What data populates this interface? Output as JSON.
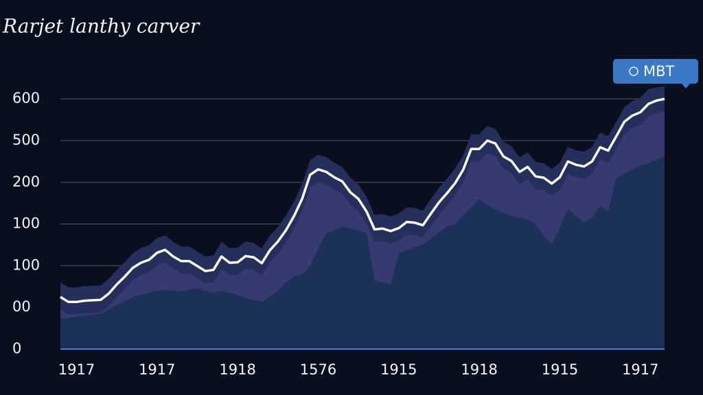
{
  "chart_data": {
    "type": "area",
    "title": "Rarjet lanthy carver",
    "categories": [
      null,
      null,
      "1917",
      null,
      null,
      null,
      null,
      null,
      null,
      null,
      null,
      null,
      "1917",
      null,
      null,
      null,
      null,
      null,
      null,
      null,
      null,
      null,
      "1918",
      null,
      null,
      null,
      null,
      null,
      null,
      null,
      null,
      null,
      "1576",
      null,
      null,
      null,
      null,
      null,
      null,
      null,
      null,
      null,
      "1915",
      null,
      null,
      null,
      null,
      null,
      null,
      null,
      null,
      null,
      "1918",
      null,
      null,
      null,
      null,
      null,
      null,
      null,
      null,
      null,
      "1915",
      null,
      null,
      null,
      null,
      null,
      null,
      null,
      null,
      null,
      "1917",
      null,
      null,
      null
    ],
    "ylim": [
      0,
      630
    ],
    "yticks": [
      0,
      {
        "value": 100,
        "label": "00"
      },
      {
        "value": 200,
        "label": "100"
      },
      {
        "value": 300,
        "label": "100"
      },
      {
        "value": 400,
        "label": "200"
      },
      {
        "value": 500,
        "label": "500"
      },
      600
    ],
    "grid": true,
    "legend": "top-right",
    "series": [
      {
        "color": "#252f5c",
        "values": [
          160,
          148,
          148,
          151,
          152,
          153,
          168,
          190,
          209,
          230,
          242,
          249,
          266,
          273,
          257,
          246,
          246,
          234,
          222,
          225,
          257,
          242,
          243,
          258,
          255,
          241,
          272,
          293,
          320,
          354,
          395,
          453,
          466,
          460,
          447,
          437,
          411,
          395,
          365,
          322,
          324,
          318,
          325,
          340,
          338,
          332,
          360,
          387,
          409,
          433,
          465,
          515,
          515,
          535,
          528,
          497,
          486,
          460,
          472,
          449,
          446,
          432,
          447,
          485,
          477,
          473,
          485,
          519,
          511,
          545,
          580,
          595,
          603,
          623,
          628,
          630
        ]
      },
      {
        "color": "#363a70",
        "values": [
          95,
          83,
          83,
          86,
          87,
          88,
          103,
          125,
          144,
          165,
          177,
          184,
          201,
          208,
          192,
          181,
          181,
          169,
          157,
          160,
          192,
          177,
          178,
          193,
          190,
          176,
          207,
          228,
          255,
          289,
          330,
          388,
          401,
          395,
          382,
          372,
          346,
          330,
          300,
          257,
          259,
          253,
          260,
          275,
          273,
          267,
          295,
          322,
          344,
          368,
          400,
          450,
          450,
          470,
          463,
          432,
          421,
          395,
          407,
          384,
          381,
          367,
          382,
          420,
          412,
          408,
          420,
          454,
          446,
          480,
          515,
          530,
          538,
          558,
          566,
          570
        ]
      },
      {
        "color": "#1c3158",
        "values": [
          72,
          75,
          78,
          80,
          82,
          85,
          95,
          105,
          115,
          125,
          130,
          135,
          140,
          142,
          140,
          138,
          142,
          146,
          140,
          135,
          140,
          135,
          130,
          122,
          118,
          113,
          125,
          140,
          160,
          175,
          179,
          200,
          240,
          278,
          285,
          294,
          290,
          284,
          278,
          165,
          160,
          155,
          230,
          237,
          245,
          250,
          265,
          280,
          294,
          300,
          320,
          340,
          360,
          345,
          335,
          327,
          320,
          315,
          311,
          300,
          270,
          253,
          290,
          336,
          320,
          303,
          315,
          344,
          330,
          410,
          420,
          430,
          440,
          445,
          455,
          462
        ]
      },
      {
        "name": "MBT",
        "color": "#ffffff",
        "values": [
          125,
          113,
          113,
          116,
          117,
          118,
          133,
          155,
          174,
          195,
          207,
          214,
          231,
          238,
          222,
          211,
          211,
          199,
          187,
          190,
          222,
          207,
          208,
          223,
          220,
          206,
          237,
          258,
          285,
          319,
          360,
          418,
          431,
          425,
          412,
          402,
          376,
          360,
          330,
          287,
          289,
          283,
          290,
          305,
          303,
          297,
          325,
          352,
          374,
          398,
          430,
          480,
          480,
          500,
          493,
          462,
          451,
          425,
          437,
          414,
          411,
          397,
          412,
          450,
          442,
          438,
          450,
          484,
          476,
          510,
          545,
          560,
          568,
          588,
          596,
          600
        ]
      }
    ]
  }
}
